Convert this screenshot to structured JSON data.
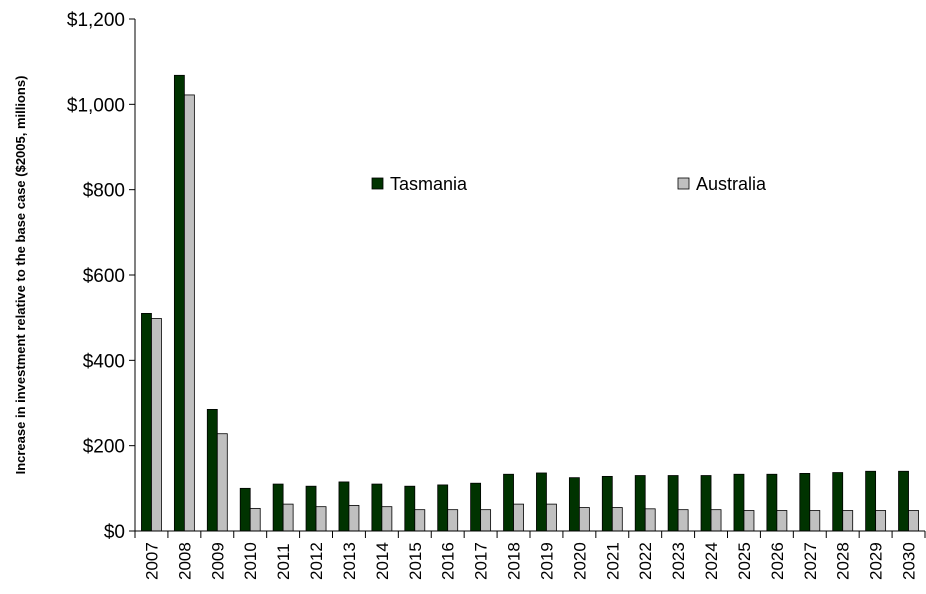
{
  "chart_data": {
    "type": "bar",
    "title": "",
    "xlabel": "",
    "ylabel": "Increase in investment relative to the base case ($2005, millions)",
    "ylim": [
      0,
      1200
    ],
    "yticks": [
      0,
      200,
      400,
      600,
      800,
      1000,
      1200
    ],
    "ytick_labels": [
      "$0",
      "$200",
      "$400",
      "$600",
      "$800",
      "$1,000",
      "$1,200"
    ],
    "grid": false,
    "legend_position": "top-center",
    "categories": [
      "2007",
      "2008",
      "2009",
      "2010",
      "2011",
      "2012",
      "2013",
      "2014",
      "2015",
      "2016",
      "2017",
      "2018",
      "2019",
      "2020",
      "2021",
      "2022",
      "2023",
      "2024",
      "2025",
      "2026",
      "2027",
      "2028",
      "2029",
      "2030"
    ],
    "series": [
      {
        "name": "Tasmania",
        "color": "#003300",
        "values": [
          510,
          1068,
          285,
          100,
          110,
          105,
          115,
          110,
          105,
          108,
          112,
          133,
          136,
          125,
          128,
          130,
          130,
          130,
          133,
          133,
          135,
          137,
          140,
          140
        ]
      },
      {
        "name": "Australia",
        "color": "#c0c0c0",
        "values": [
          498,
          1022,
          228,
          53,
          63,
          57,
          60,
          57,
          50,
          50,
          50,
          63,
          63,
          55,
          55,
          52,
          50,
          50,
          48,
          48,
          48,
          48,
          48,
          48
        ]
      }
    ]
  }
}
